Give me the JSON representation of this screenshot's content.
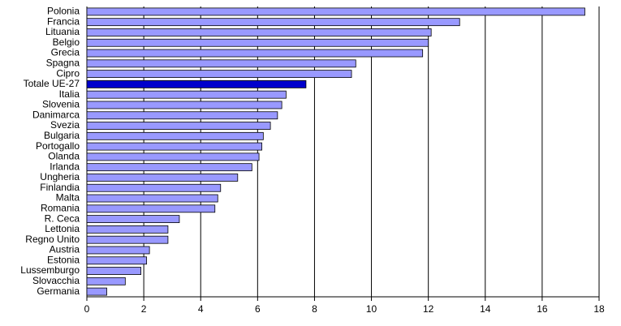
{
  "chart_data": {
    "type": "hbar",
    "categories": [
      "Polonia",
      "Francia",
      "Lituania",
      "Belgio",
      "Grecia",
      "Spagna",
      "Cipro",
      "Totale UE-27",
      "Italia",
      "Slovenia",
      "Danimarca",
      "Svezia",
      "Bulgaria",
      "Portogallo",
      "Olanda",
      "Irlanda",
      "Ungheria",
      "Finlandia",
      "Malta",
      "Romania",
      "R. Ceca",
      "Lettonia",
      "Regno Unito",
      "Austria",
      "Estonia",
      "Lussemburgo",
      "Slovacchia",
      "Germania"
    ],
    "values": [
      17.5,
      13.1,
      12.1,
      12.0,
      11.8,
      9.45,
      9.3,
      7.7,
      7.0,
      6.85,
      6.7,
      6.45,
      6.2,
      6.15,
      6.05,
      5.8,
      5.3,
      4.7,
      4.6,
      4.5,
      3.25,
      2.85,
      2.85,
      2.2,
      2.1,
      1.9,
      1.35,
      0.7
    ],
    "colors": [
      "#9999ff",
      "#9999ff",
      "#9999ff",
      "#9999ff",
      "#9999ff",
      "#9999ff",
      "#9999ff",
      "#0000cc",
      "#9999ff",
      "#9999ff",
      "#9999ff",
      "#9999ff",
      "#9999ff",
      "#9999ff",
      "#9999ff",
      "#9999ff",
      "#9999ff",
      "#9999ff",
      "#9999ff",
      "#9999ff",
      "#9999ff",
      "#9999ff",
      "#9999ff",
      "#9999ff",
      "#9999ff",
      "#9999ff",
      "#9999ff",
      "#9999ff"
    ],
    "xlim": [
      0,
      18
    ],
    "xticks": [
      0,
      2,
      4,
      6,
      8,
      10,
      12,
      14,
      16,
      18
    ],
    "grid": true
  }
}
